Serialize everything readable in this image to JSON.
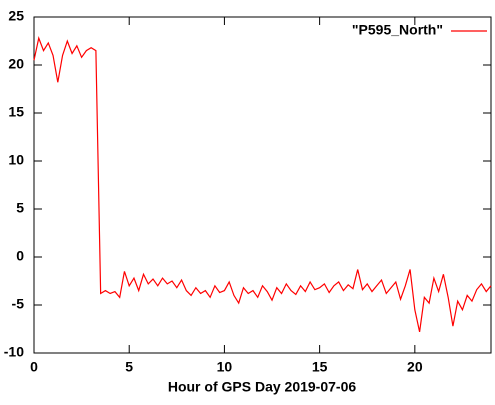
{
  "chart_data": {
    "type": "line",
    "xlabel": "Hour of GPS Day 2019-07-06",
    "x": [
      0,
      0.25,
      0.5,
      0.75,
      1,
      1.25,
      1.5,
      1.75,
      2,
      2.25,
      2.5,
      2.75,
      3,
      3.25,
      3.5,
      3.75,
      4,
      4.25,
      4.5,
      4.75,
      5,
      5.25,
      5.5,
      5.75,
      6,
      6.25,
      6.5,
      6.75,
      7,
      7.25,
      7.5,
      7.75,
      8,
      8.25,
      8.5,
      8.75,
      9,
      9.25,
      9.5,
      9.75,
      10,
      10.25,
      10.5,
      10.75,
      11,
      11.25,
      11.5,
      11.75,
      12,
      12.25,
      12.5,
      12.75,
      13,
      13.25,
      13.5,
      13.75,
      14,
      14.25,
      14.5,
      14.75,
      15,
      15.25,
      15.5,
      15.75,
      16,
      16.25,
      16.5,
      16.75,
      17,
      17.25,
      17.5,
      17.75,
      18,
      18.25,
      18.5,
      18.75,
      19,
      19.25,
      19.5,
      19.75,
      20,
      20.25,
      20.5,
      20.75,
      21,
      21.25,
      21.5,
      21.75,
      22,
      22.25,
      22.5,
      22.75,
      23,
      23.25,
      23.5,
      23.75,
      24
    ],
    "series": [
      {
        "name": "\"P595_North\"",
        "color": "#ff0000",
        "values": [
          20.5,
          22.8,
          21.5,
          22.3,
          21,
          18.2,
          21,
          22.5,
          21.2,
          22,
          20.8,
          21.5,
          21.8,
          21.5,
          -3.8,
          -3.5,
          -3.8,
          -3.6,
          -4.2,
          -1.5,
          -3,
          -2.2,
          -3.5,
          -1.8,
          -2.8,
          -2.3,
          -3,
          -2.2,
          -2.8,
          -2.5,
          -3.2,
          -2.4,
          -3.5,
          -4,
          -3.2,
          -3.8,
          -3.5,
          -4.2,
          -3,
          -3.7,
          -3.5,
          -2.6,
          -4,
          -4.8,
          -3.2,
          -3.8,
          -3.5,
          -4.2,
          -3,
          -3.6,
          -4.5,
          -3.2,
          -3.8,
          -2.8,
          -3.5,
          -3.9,
          -3,
          -3.6,
          -2.6,
          -3.4,
          -3.2,
          -2.8,
          -3.7,
          -3,
          -2.6,
          -3.5,
          -2.9,
          -3.3,
          -1.3,
          -3.4,
          -2.8,
          -3.6,
          -3,
          -2.4,
          -3.8,
          -3.2,
          -2.6,
          -4.4,
          -3,
          -1.3,
          -5.5,
          -7.8,
          -4.2,
          -4.8,
          -2.2,
          -3.6,
          -1.8,
          -4.2,
          -7.2,
          -4.6,
          -5.5,
          -4,
          -4.6,
          -3.4,
          -2.8,
          -3.6,
          -3
        ]
      }
    ],
    "xlim": [
      0,
      24
    ],
    "xticks": [
      0,
      5,
      10,
      15,
      20
    ],
    "ylim": [
      -10,
      25
    ],
    "yticks": [
      -10,
      -5,
      0,
      5,
      10,
      15,
      20,
      25
    ],
    "legend": "top-right"
  }
}
